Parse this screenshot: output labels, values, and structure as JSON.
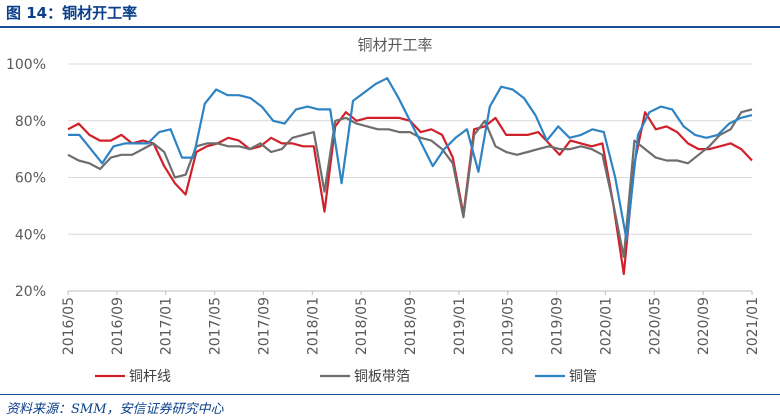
{
  "figure": {
    "title": "图 14：铜材开工率",
    "source": "资料来源：SMM，安信证券研究中心"
  },
  "chart_data": {
    "type": "line",
    "title": "铜材开工率",
    "y_ticks": [
      "100%",
      "80%",
      "60%",
      "40%",
      "20%"
    ],
    "y_tick_values": [
      100,
      80,
      60,
      40,
      20
    ],
    "ylim": [
      20,
      100
    ],
    "x_tick_labels": [
      "2016/05",
      "2016/09",
      "2017/01",
      "2017/05",
      "2017/09",
      "2018/01",
      "2018/05",
      "2018/09",
      "2019/01",
      "2019/05",
      "2019/09",
      "2020/01",
      "2020/05",
      "2020/09",
      "2021/01"
    ],
    "x_start": "2016/05",
    "x_end": "2021/01",
    "grid": "horizontal",
    "legend_position": "bottom",
    "series": [
      {
        "name": "铜杆线",
        "color": "#d0202a",
        "values": [
          77,
          79,
          75,
          73,
          73,
          75,
          72,
          73,
          72,
          64,
          58,
          54,
          69,
          71,
          72,
          74,
          73,
          70,
          71,
          74,
          72,
          72,
          71,
          71,
          48,
          78,
          83,
          80,
          81,
          81,
          81,
          81,
          80,
          76,
          77,
          75,
          67,
          47,
          77,
          78,
          81,
          75,
          75,
          75,
          76,
          72,
          68,
          73,
          72,
          71,
          72,
          51,
          26,
          65,
          83,
          77,
          78,
          76,
          72,
          70,
          70,
          71,
          72,
          70,
          66
        ]
      },
      {
        "name": "铜板带箔",
        "color": "#6e6e6e",
        "values": [
          68,
          66,
          65,
          63,
          67,
          68,
          68,
          70,
          72,
          69,
          60,
          61,
          71,
          72,
          72,
          71,
          71,
          70,
          72,
          69,
          70,
          74,
          75,
          76,
          55,
          80,
          81,
          79,
          78,
          77,
          77,
          76,
          76,
          74,
          73,
          70,
          65,
          46,
          75,
          80,
          71,
          69,
          68,
          69,
          70,
          71,
          70,
          70,
          71,
          70,
          68,
          51,
          32,
          73,
          70,
          67,
          66,
          66,
          65,
          68,
          71,
          75,
          77,
          83,
          84
        ]
      },
      {
        "name": "铜管",
        "color": "#2e84c3",
        "values": [
          75,
          75,
          70,
          65,
          71,
          72,
          72,
          72,
          76,
          77,
          67,
          67,
          86,
          91,
          89,
          89,
          88,
          85,
          80,
          79,
          84,
          85,
          84,
          84,
          58,
          87,
          90,
          93,
          95,
          88,
          80,
          72,
          64,
          70,
          74,
          77,
          62,
          85,
          92,
          91,
          88,
          82,
          73,
          78,
          74,
          75,
          77,
          76,
          60,
          38,
          75,
          83,
          85,
          84,
          78,
          75,
          74,
          75,
          79,
          81,
          82
        ]
      }
    ]
  }
}
